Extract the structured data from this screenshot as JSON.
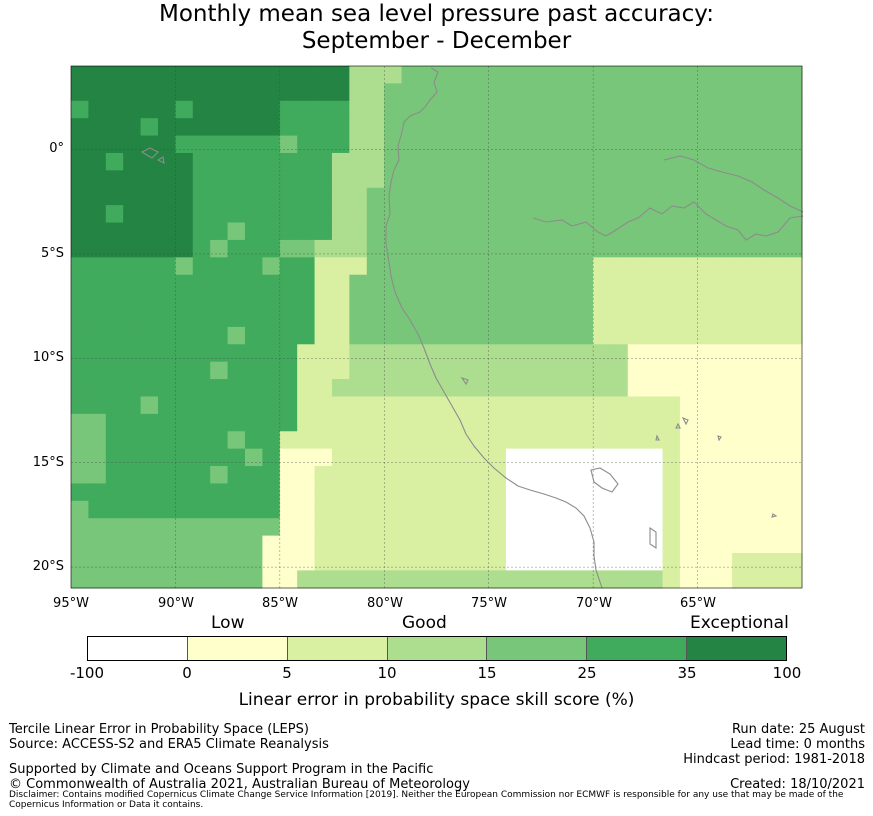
{
  "title": {
    "line1": "Monthly mean sea level pressure past accuracy:",
    "line2": "September - December"
  },
  "map": {
    "lat_labels": [
      "0°",
      "5°S",
      "10°S",
      "15°S",
      "20°S"
    ],
    "lon_labels": [
      "95°W",
      "90°W",
      "85°W",
      "80°W",
      "75°W",
      "70°W",
      "65°W"
    ],
    "extent": {
      "lon_min": -95,
      "lon_max": -60,
      "lat_min": -21,
      "lat_max": 4
    },
    "grid_step_deg": 0.833,
    "coast_color": "#8c8c8c",
    "gridline_color": "#444444"
  },
  "colorbar": {
    "category_labels": [
      "Low",
      "Good",
      "Exceptional"
    ],
    "tick_labels": [
      "-100",
      "0",
      "5",
      "10",
      "15",
      "25",
      "35",
      "100"
    ],
    "colors": [
      "#ffffff",
      "#ffffcc",
      "#d9f0a3",
      "#addd8e",
      "#78c679",
      "#41ab5d",
      "#238443"
    ],
    "label": "Linear error in probability space skill score (%)"
  },
  "footer": {
    "method": "Tercile Linear Error in Probability Space (LEPS)",
    "source": "Source: ACCESS-S2 and ERA5 Climate Reanalysis",
    "support": "Supported by Climate and Oceans Support Program in the Pacific",
    "copyright": "© Commonwealth of Australia 2021, Australian Bureau of Meteorology",
    "disclaimer": "Disclaimer: Contains modified Copernicus Climate Change Service Information [2019]. Neither the European Commission nor ECMWF is responsible for any use that may be made of the Copernicus Information or Data it contains.",
    "run_date": "Run date: 25 August",
    "lead_time": "Lead time: 0 months",
    "hindcast": "Hindcast period: 1981-2018",
    "created": "Created: 18/10/2021"
  }
}
